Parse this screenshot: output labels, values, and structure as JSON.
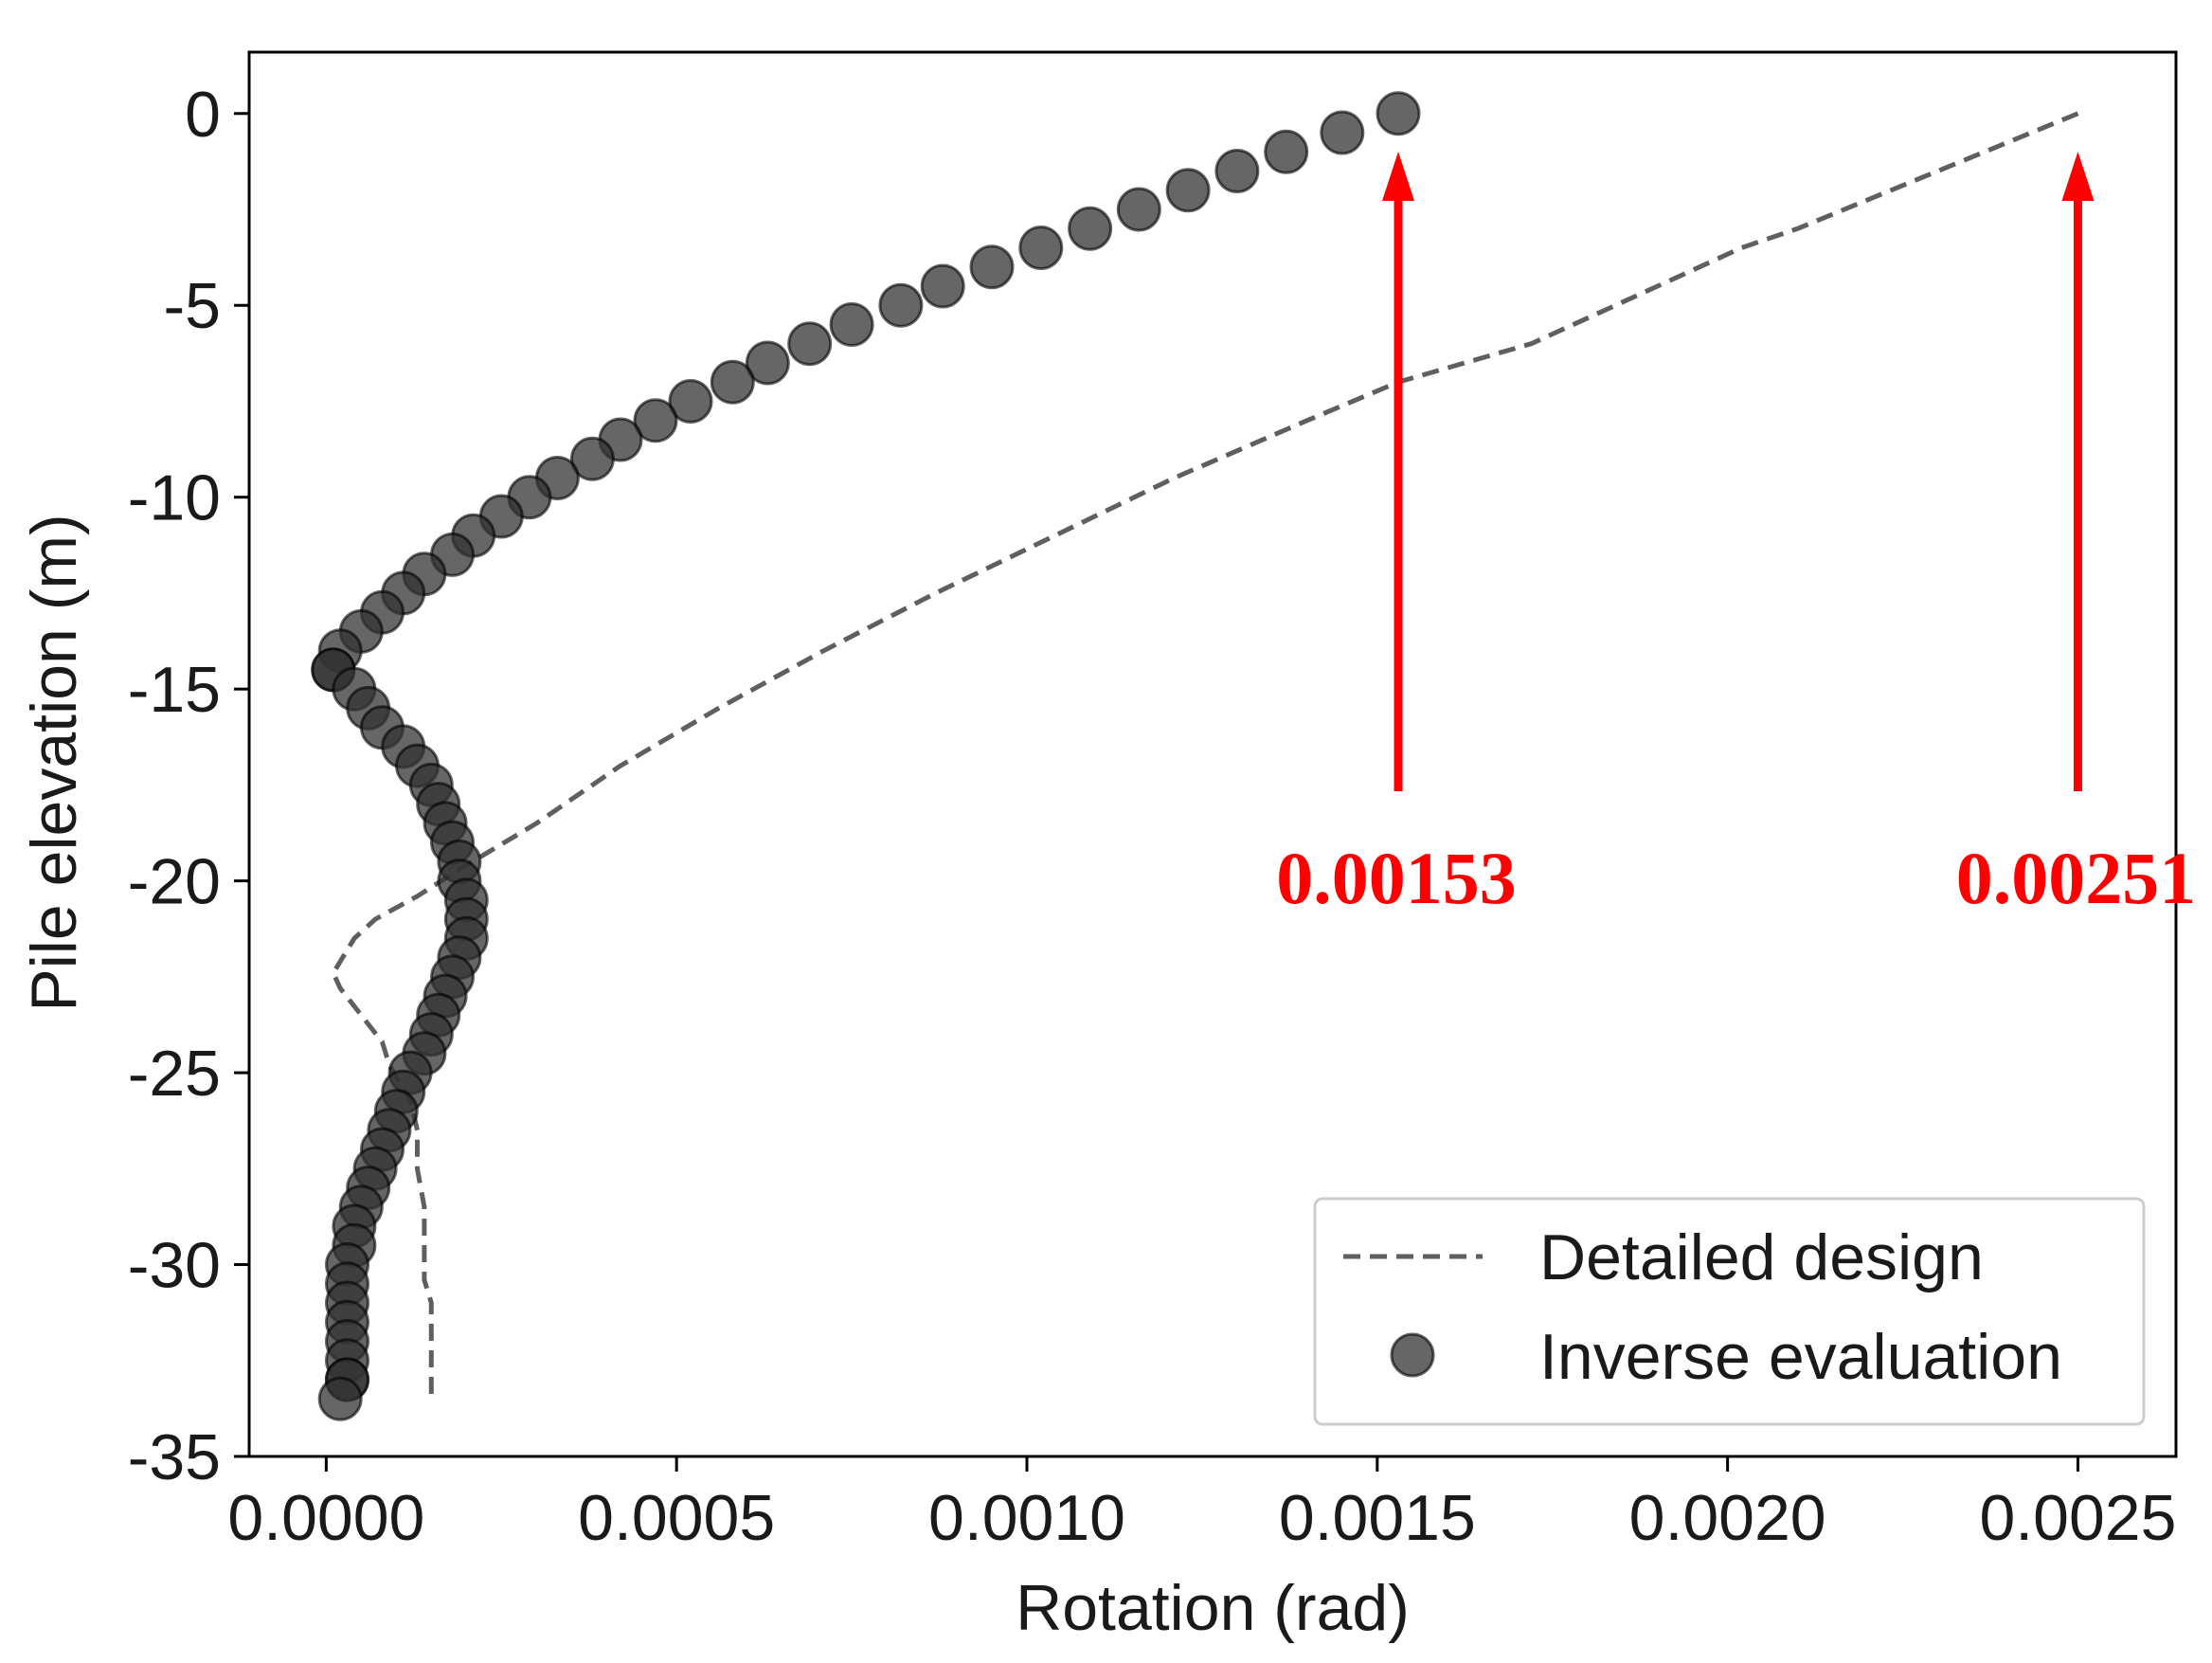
{
  "chart_data": {
    "type": "scatter",
    "xlabel": "Rotation (rad)",
    "ylabel": "Pile elevation (m)",
    "xlim": [
      -0.00011,
      0.00264
    ],
    "ylim": [
      -35,
      1.6
    ],
    "xticks": [
      0.0,
      0.0005,
      0.001,
      0.0015,
      0.002,
      0.0025
    ],
    "xtick_labels": [
      "0.0000",
      "0.0005",
      "0.0010",
      "0.0015",
      "0.0020",
      "0.0025"
    ],
    "yticks": [
      0,
      -5,
      -10,
      -15,
      -20,
      -25,
      -30,
      -35
    ],
    "ytick_labels": [
      "0",
      "-5",
      "-10",
      "-15",
      "-20",
      "-25",
      "-30",
      "-35"
    ],
    "grid": false,
    "legend_position": "bottom-right",
    "series": [
      {
        "name": "Detailed design",
        "kind": "line",
        "style": "dashed",
        "color": "#5f5f5f",
        "x": [
          0.0025,
          0.0023,
          0.0021,
          0.00202,
          0.0019,
          0.00172,
          0.00153,
          0.0014,
          0.00121,
          0.00104,
          0.00087,
          0.00071,
          0.00056,
          0.00042,
          0.0003,
          0.00019,
          0.00013,
          7e-05,
          4e-05,
          1e-05,
          2e-05,
          5e-05,
          8e-05,
          9e-05,
          0.00012,
          0.00013,
          0.00013,
          0.00014,
          0.00014,
          0.00014,
          0.00015,
          0.00015
        ],
        "y": [
          0,
          -1.5,
          -3,
          -3.5,
          -4.5,
          -6,
          -7,
          -8,
          -9.5,
          -11,
          -12.5,
          -14,
          -15.5,
          -17,
          -18.5,
          -19.7,
          -20.4,
          -21,
          -21.5,
          -22.4,
          -22.8,
          -23.5,
          -24.2,
          -24.8,
          -25.7,
          -26.5,
          -27.5,
          -28.5,
          -29.5,
          -30.4,
          -31,
          -33.4
        ]
      },
      {
        "name": "Inverse evaluation",
        "kind": "scatter",
        "marker": "circle",
        "color": "#333333",
        "x": [
          0.00153,
          0.00145,
          0.00137,
          0.0013,
          0.00123,
          0.00116,
          0.00109,
          0.00102,
          0.00095,
          0.00088,
          0.00082,
          0.00075,
          0.00069,
          0.00063,
          0.00058,
          0.00052,
          0.00047,
          0.00042,
          0.00038,
          0.00033,
          0.00029,
          0.00025,
          0.00021,
          0.00018,
          0.00014,
          0.00011,
          8e-05,
          5e-05,
          2e-05,
          1e-05,
          1e-05,
          4e-05,
          6e-05,
          8e-05,
          0.00011,
          0.00013,
          0.00015,
          0.00016,
          0.00017,
          0.00018,
          0.00019,
          0.00019,
          0.0002,
          0.0002,
          0.0002,
          0.00019,
          0.00018,
          0.00017,
          0.00016,
          0.00015,
          0.00014,
          0.00012,
          0.00011,
          0.0001,
          9e-05,
          8e-05,
          7e-05,
          6e-05,
          5e-05,
          4e-05,
          4e-05,
          3e-05,
          3e-05,
          3e-05,
          3e-05,
          3e-05,
          3e-05,
          3e-05,
          3e-05,
          2e-05
        ],
        "y": [
          0,
          -0.5,
          -1,
          -1.5,
          -2,
          -2.5,
          -3,
          -3.5,
          -4,
          -4.5,
          -5,
          -5.5,
          -6,
          -6.5,
          -7,
          -7.5,
          -8,
          -8.5,
          -9,
          -9.5,
          -10,
          -10.5,
          -11,
          -11.5,
          -12,
          -12.5,
          -13,
          -13.5,
          -14,
          -14.5,
          -14.5,
          -15,
          -15.5,
          -16,
          -16.5,
          -17,
          -17.5,
          -18,
          -18.5,
          -19,
          -19.5,
          -20,
          -20.5,
          -21,
          -21.5,
          -22,
          -22.5,
          -23,
          -23.5,
          -24,
          -24.5,
          -25,
          -25.5,
          -26,
          -26.5,
          -27,
          -27.5,
          -28,
          -28.5,
          -29,
          -29.5,
          -30,
          -30.5,
          -31,
          -31.5,
          -32,
          -32.5,
          -33,
          -33,
          -33.5
        ]
      }
    ],
    "annotations": [
      {
        "text": "0.00153",
        "x": 0.00153,
        "color": "#ff0000"
      },
      {
        "text": "0.00251",
        "x": 0.0025,
        "color": "#ff0000"
      }
    ]
  }
}
